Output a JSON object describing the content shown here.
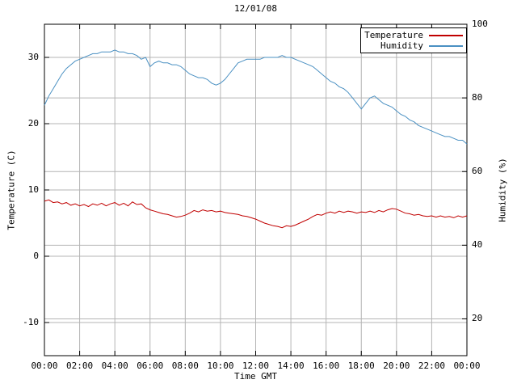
{
  "title": "12/01/08",
  "axes": {
    "x_label": "Time GMT",
    "left_label": "Temperature (C)",
    "right_label": "Humidity (%)",
    "x_tick_labels": [
      "00:00",
      "02:00",
      "04:00",
      "06:00",
      "08:00",
      "10:00",
      "12:00",
      "14:00",
      "16:00",
      "18:00",
      "20:00",
      "22:00",
      "00:00"
    ],
    "x_tick_hours": [
      0,
      2,
      4,
      6,
      8,
      10,
      12,
      14,
      16,
      18,
      20,
      22,
      24
    ],
    "left_tick_values": [
      -10,
      0,
      10,
      20,
      30
    ],
    "right_tick_values": [
      20,
      40,
      60,
      80,
      100
    ]
  },
  "legend": [
    {
      "label": "Temperature",
      "color": "#c00000"
    },
    {
      "label": "Humidity",
      "color": "#4a90c2"
    }
  ],
  "colors": {
    "grid": "#b4b4b4",
    "border": "#000000",
    "background": "#ffffff",
    "text": "#000000"
  },
  "chart_data": {
    "type": "line",
    "title": "12/01/08",
    "xlabel": "Time GMT",
    "ylabel_left": "Temperature (C)",
    "ylabel_right": "Humidity (%)",
    "x_range_hours": [
      0,
      24
    ],
    "left_ylim": [
      -15,
      35
    ],
    "right_ylim": [
      10,
      100
    ],
    "grid": true,
    "legend_position": "top-right-inside",
    "x_hours": [
      0,
      0.25,
      0.5,
      0.75,
      1,
      1.25,
      1.5,
      1.75,
      2,
      2.25,
      2.5,
      2.75,
      3,
      3.25,
      3.5,
      3.75,
      4,
      4.25,
      4.5,
      4.75,
      5,
      5.25,
      5.5,
      5.75,
      6,
      6.25,
      6.5,
      6.75,
      7,
      7.25,
      7.5,
      7.75,
      8,
      8.25,
      8.5,
      8.75,
      9,
      9.25,
      9.5,
      9.75,
      10,
      10.25,
      10.5,
      10.75,
      11,
      11.25,
      11.5,
      11.75,
      12,
      12.25,
      12.5,
      12.75,
      13,
      13.25,
      13.5,
      13.75,
      14,
      14.25,
      14.5,
      14.75,
      15,
      15.25,
      15.5,
      15.75,
      16,
      16.25,
      16.5,
      16.75,
      17,
      17.25,
      17.5,
      17.75,
      18,
      18.25,
      18.5,
      18.75,
      19,
      19.25,
      19.5,
      19.75,
      20,
      20.25,
      20.5,
      20.75,
      21,
      21.25,
      21.5,
      21.75,
      22,
      22.25,
      22.5,
      22.75,
      23,
      23.25,
      23.5,
      23.75,
      24
    ],
    "series": [
      {
        "name": "Temperature",
        "axis": "left",
        "unit": "C",
        "color": "#c00000",
        "values": [
          8.3,
          8.5,
          8.1,
          8.2,
          7.9,
          8.1,
          7.7,
          7.9,
          7.6,
          7.8,
          7.5,
          7.9,
          7.7,
          8.0,
          7.6,
          7.9,
          8.1,
          7.7,
          8.0,
          7.6,
          8.2,
          7.8,
          7.9,
          7.3,
          7.0,
          6.8,
          6.6,
          6.4,
          6.3,
          6.1,
          5.9,
          6.0,
          6.2,
          6.5,
          6.9,
          6.7,
          7.0,
          6.8,
          6.9,
          6.7,
          6.8,
          6.6,
          6.5,
          6.4,
          6.3,
          6.1,
          6.0,
          5.8,
          5.6,
          5.3,
          5.0,
          4.8,
          4.6,
          4.5,
          4.3,
          4.6,
          4.5,
          4.7,
          5.0,
          5.3,
          5.6,
          6.0,
          6.3,
          6.2,
          6.5,
          6.7,
          6.5,
          6.8,
          6.6,
          6.8,
          6.7,
          6.5,
          6.7,
          6.6,
          6.8,
          6.6,
          6.9,
          6.7,
          7.0,
          7.2,
          7.1,
          6.8,
          6.5,
          6.4,
          6.2,
          6.3,
          6.1,
          6.0,
          6.1,
          5.9,
          6.1,
          5.9,
          6.0,
          5.8,
          6.1,
          5.9,
          6.1
        ]
      },
      {
        "name": "Humidity",
        "axis": "right",
        "unit": "%",
        "color": "#4a90c2",
        "values": [
          78,
          80.5,
          82.5,
          84.5,
          86.5,
          88,
          89,
          90,
          90.5,
          91,
          91.5,
          92,
          92,
          92.5,
          92.5,
          92.5,
          93,
          92.5,
          92.5,
          92,
          92,
          91.5,
          90.5,
          91,
          88.5,
          89.5,
          90,
          89.5,
          89.5,
          89,
          89,
          88.5,
          87.5,
          86.5,
          86,
          85.5,
          85.5,
          85,
          84,
          83.5,
          84,
          85,
          86.5,
          88,
          89.5,
          90,
          90.5,
          90.5,
          90.5,
          90.5,
          91,
          91,
          91,
          91,
          91.5,
          91,
          91,
          90.5,
          90,
          89.5,
          89,
          88.5,
          87.5,
          86.5,
          85.5,
          84.5,
          84,
          83,
          82.5,
          81.5,
          80,
          78.5,
          77,
          78.5,
          80,
          80.5,
          79.5,
          78.5,
          78,
          77.5,
          76.5,
          75.5,
          75,
          74,
          73.5,
          72.5,
          72,
          71.5,
          71,
          70.5,
          70,
          69.5,
          69.5,
          69,
          68.5,
          68.5,
          67.5
        ]
      }
    ]
  }
}
